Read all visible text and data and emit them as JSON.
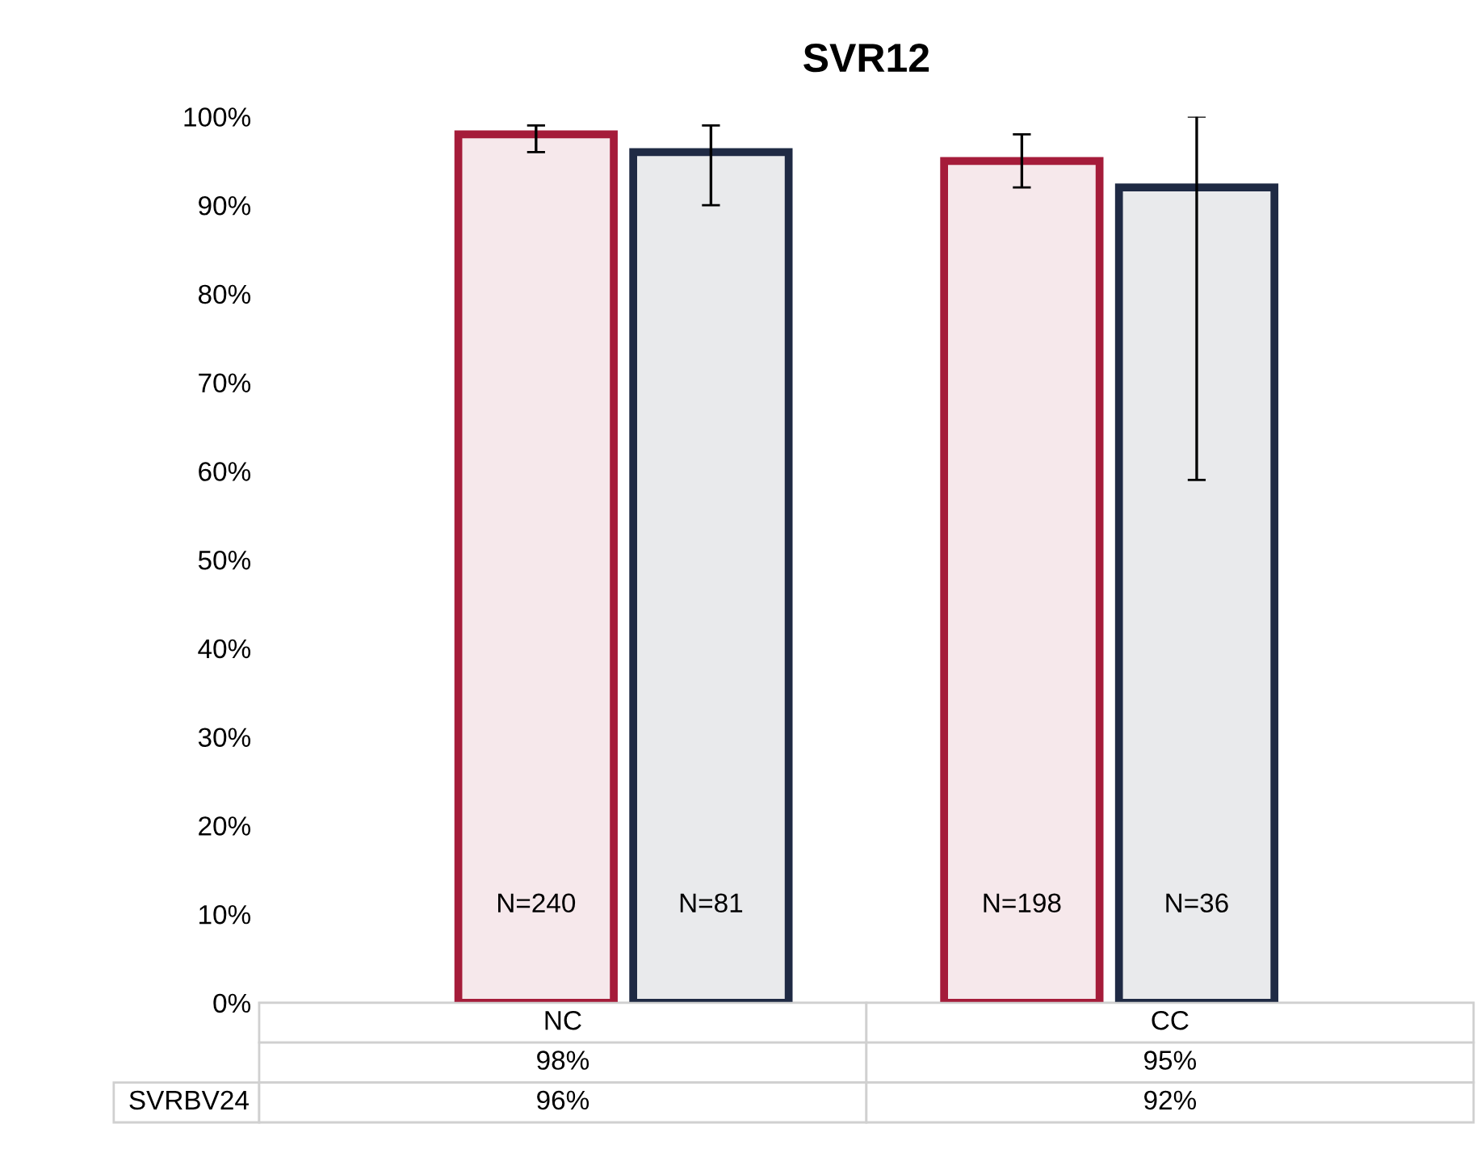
{
  "chart_data": {
    "type": "bar",
    "title": "SVR12",
    "categories": [
      "NC",
      "CC"
    ],
    "series": [
      {
        "name": null,
        "color": "#a51c3a",
        "values": [
          98,
          95
        ],
        "value_labels": [
          "98%",
          "95%"
        ],
        "errors": [
          [
            96,
            99
          ],
          [
            92,
            98
          ]
        ]
      },
      {
        "name": "SVRBV24",
        "color": "#1f2a44",
        "values": [
          96,
          92
        ],
        "value_labels": [
          "96%",
          "92%"
        ],
        "errors": [
          [
            90,
            99
          ],
          [
            59,
            100
          ]
        ]
      }
    ],
    "ylim": [
      0,
      100
    ],
    "yticks": [
      {
        "value": 0,
        "label": "0%"
      },
      {
        "value": 10,
        "label": "10%"
      },
      {
        "value": 20,
        "label": "20%"
      },
      {
        "value": 30,
        "label": "30%"
      },
      {
        "value": 40,
        "label": "40%"
      },
      {
        "value": 50,
        "label": "50%"
      },
      {
        "value": 60,
        "label": "60%"
      },
      {
        "value": 70,
        "label": "70%"
      },
      {
        "value": 80,
        "label": "80%"
      },
      {
        "value": 90,
        "label": "90%"
      },
      {
        "value": 100,
        "label": "100%"
      }
    ],
    "annotations": [
      "N=240",
      "N=81",
      "N=198",
      "N=36"
    ],
    "grid": false,
    "legend": false
  }
}
